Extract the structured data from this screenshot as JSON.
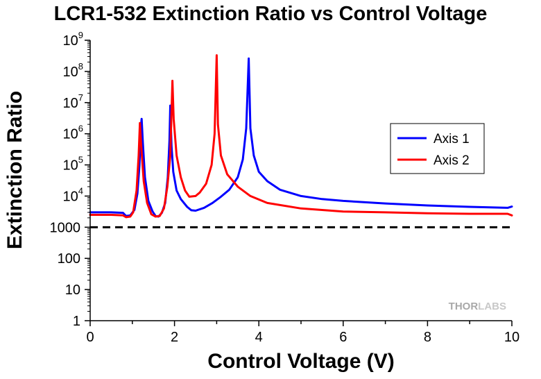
{
  "chart_data": {
    "type": "line",
    "title": "LCR1-532 Extinction Ratio vs Control Voltage",
    "xlabel": "Control Voltage (V)",
    "ylabel": "Extinction Ratio",
    "xlim": [
      0,
      10
    ],
    "ylim": [
      1,
      1000000000
    ],
    "y_scale": "log",
    "x_ticks": [
      "0",
      "2",
      "4",
      "6",
      "8",
      "10"
    ],
    "y_ticks": [
      {
        "value": 1,
        "label": "1"
      },
      {
        "value": 10,
        "label": "10"
      },
      {
        "value": 100,
        "label": "100"
      },
      {
        "value": 1000,
        "label": "1000"
      },
      {
        "value": 10000,
        "label": "10",
        "exp": "4"
      },
      {
        "value": 100000,
        "label": "10",
        "exp": "5"
      },
      {
        "value": 1000000,
        "label": "10",
        "exp": "6"
      },
      {
        "value": 10000000,
        "label": "10",
        "exp": "7"
      },
      {
        "value": 100000000,
        "label": "10",
        "exp": "8"
      },
      {
        "value": 1000000000,
        "label": "10",
        "exp": "9"
      }
    ],
    "reference_line": {
      "y": 1000,
      "style": "dashed",
      "color": "#000000"
    },
    "legend_position": "right, upper-middle",
    "series": [
      {
        "name": "Axis 1",
        "color": "#0000ff",
        "points": [
          [
            0,
            3000
          ],
          [
            0.5,
            3000
          ],
          [
            0.78,
            2900
          ],
          [
            0.85,
            2300
          ],
          [
            0.95,
            2400
          ],
          [
            1.05,
            3600
          ],
          [
            1.12,
            12000
          ],
          [
            1.17,
            100000
          ],
          [
            1.2,
            1500000
          ],
          [
            1.22,
            3000000
          ],
          [
            1.25,
            500000
          ],
          [
            1.3,
            40000
          ],
          [
            1.38,
            7000
          ],
          [
            1.48,
            3200
          ],
          [
            1.55,
            2300
          ],
          [
            1.62,
            2200
          ],
          [
            1.7,
            2900
          ],
          [
            1.78,
            6000
          ],
          [
            1.84,
            40000
          ],
          [
            1.88,
            600000
          ],
          [
            1.9,
            8000000
          ],
          [
            1.93,
            400000
          ],
          [
            1.97,
            60000
          ],
          [
            2.05,
            15000
          ],
          [
            2.15,
            8000
          ],
          [
            2.3,
            4500
          ],
          [
            2.4,
            3500
          ],
          [
            2.5,
            3400
          ],
          [
            2.7,
            4200
          ],
          [
            2.9,
            6000
          ],
          [
            3.1,
            9500
          ],
          [
            3.3,
            16000
          ],
          [
            3.5,
            40000
          ],
          [
            3.62,
            150000
          ],
          [
            3.7,
            1500000
          ],
          [
            3.76,
            260000000
          ],
          [
            3.8,
            1500000
          ],
          [
            3.88,
            200000
          ],
          [
            4.0,
            60000
          ],
          [
            4.2,
            30000
          ],
          [
            4.5,
            16000
          ],
          [
            5.0,
            10000
          ],
          [
            5.5,
            8000
          ],
          [
            6.0,
            7000
          ],
          [
            7.0,
            5800
          ],
          [
            8.0,
            5000
          ],
          [
            9.0,
            4500
          ],
          [
            9.9,
            4200
          ],
          [
            10,
            4600
          ]
        ]
      },
      {
        "name": "Axis 2",
        "color": "#ff0000",
        "points": [
          [
            0,
            2500
          ],
          [
            0.5,
            2500
          ],
          [
            0.78,
            2400
          ],
          [
            0.85,
            2100
          ],
          [
            0.95,
            2200
          ],
          [
            1.02,
            3000
          ],
          [
            1.1,
            15000
          ],
          [
            1.15,
            200000
          ],
          [
            1.18,
            2200000
          ],
          [
            1.21,
            400000
          ],
          [
            1.27,
            30000
          ],
          [
            1.35,
            6000
          ],
          [
            1.45,
            2600
          ],
          [
            1.55,
            2200
          ],
          [
            1.65,
            2300
          ],
          [
            1.75,
            4000
          ],
          [
            1.83,
            20000
          ],
          [
            1.9,
            200000
          ],
          [
            1.95,
            50000000
          ],
          [
            1.98,
            3000000
          ],
          [
            2.05,
            200000
          ],
          [
            2.15,
            40000
          ],
          [
            2.25,
            15000
          ],
          [
            2.35,
            9500
          ],
          [
            2.5,
            10000
          ],
          [
            2.6,
            13000
          ],
          [
            2.75,
            25000
          ],
          [
            2.88,
            100000
          ],
          [
            2.95,
            1000000
          ],
          [
            3.0,
            330000000
          ],
          [
            3.03,
            2000000
          ],
          [
            3.1,
            200000
          ],
          [
            3.25,
            50000
          ],
          [
            3.5,
            20000
          ],
          [
            3.8,
            10000
          ],
          [
            4.2,
            6000
          ],
          [
            5.0,
            4000
          ],
          [
            6.0,
            3200
          ],
          [
            7.0,
            3000
          ],
          [
            8.0,
            2800
          ],
          [
            9.0,
            2700
          ],
          [
            9.9,
            2700
          ],
          [
            10,
            2400
          ]
        ]
      }
    ]
  },
  "watermark": {
    "text_a": "THOR",
    "text_b": "LABS"
  }
}
